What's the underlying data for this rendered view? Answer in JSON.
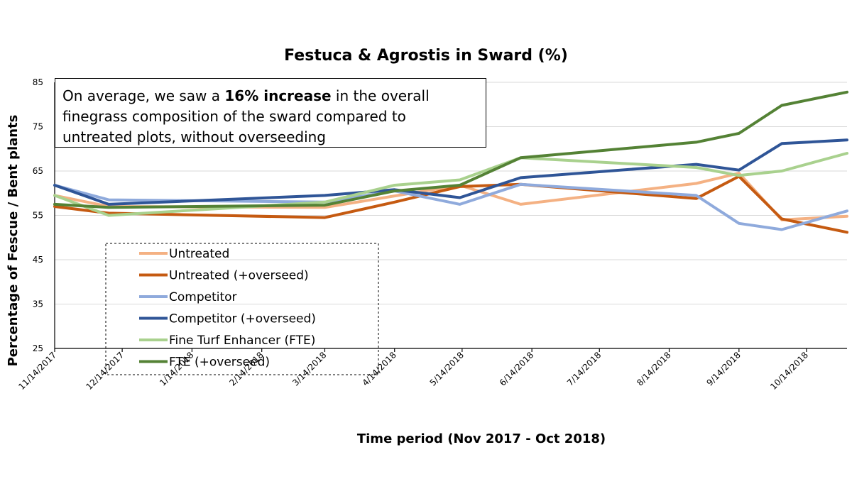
{
  "chart_data": {
    "type": "line",
    "title": "Festuca & Agrostis in Sward (%)",
    "xlabel": "Time period (Nov 2017 - Oct 2018)",
    "ylabel": "Percentage of  Fescue / Bent plants",
    "ylim": [
      25,
      85
    ],
    "yticks": [
      "25",
      "35",
      "45",
      "55",
      "65",
      "75",
      "85"
    ],
    "xlim_days": [
      0,
      352
    ],
    "xticks": [
      {
        "label": "11/14/2017",
        "day": 0
      },
      {
        "label": "12/14/2017",
        "day": 30
      },
      {
        "label": "1/14/2018",
        "day": 61
      },
      {
        "label": "2/14/2018",
        "day": 92
      },
      {
        "label": "3/14/2018",
        "day": 120
      },
      {
        "label": "4/14/2018",
        "day": 151
      },
      {
        "label": "5/14/2018",
        "day": 181
      },
      {
        "label": "6/14/2018",
        "day": 212
      },
      {
        "label": "7/14/2018",
        "day": 242
      },
      {
        "label": "8/14/2018",
        "day": 273
      },
      {
        "label": "9/14/2018",
        "day": 304
      },
      {
        "label": "10/14/2018",
        "day": 334
      }
    ],
    "series": [
      {
        "name": "Untreated",
        "color": "#f4b183",
        "days": [
          0,
          24,
          120,
          180,
          207,
          285,
          304,
          323,
          352
        ],
        "values": [
          59.5,
          57.0,
          56.8,
          61.8,
          57.5,
          62.2,
          64.5,
          54.0,
          54.8
        ]
      },
      {
        "name": "Untreated (+overseed)",
        "color": "#c55a11",
        "days": [
          0,
          24,
          120,
          151,
          180,
          207,
          285,
          304,
          323,
          352
        ],
        "values": [
          57.0,
          55.5,
          54.5,
          58.0,
          61.5,
          62.0,
          58.8,
          63.8,
          54.2,
          51.2
        ]
      },
      {
        "name": "Competitor",
        "color": "#8faadc",
        "days": [
          0,
          24,
          120,
          151,
          180,
          207,
          285,
          304,
          323,
          352
        ],
        "values": [
          61.8,
          58.5,
          58.0,
          60.5,
          57.5,
          62.0,
          59.5,
          53.2,
          51.8,
          56.0
        ]
      },
      {
        "name": "Competitor (+overseed)",
        "color": "#2f5597",
        "days": [
          0,
          24,
          120,
          151,
          180,
          207,
          285,
          304,
          323,
          352
        ],
        "values": [
          61.8,
          57.5,
          59.5,
          60.8,
          59.0,
          63.5,
          66.5,
          65.2,
          71.2,
          72.0
        ]
      },
      {
        "name": "Fine Turf Enhancer (FTE)",
        "color": "#a9d18e",
        "days": [
          0,
          24,
          120,
          151,
          180,
          207,
          285,
          304,
          323,
          352
        ],
        "values": [
          59.5,
          55.0,
          58.0,
          61.8,
          63.0,
          68.0,
          65.8,
          64.0,
          65.0,
          69.0
        ]
      },
      {
        "name": "FTE (+overseed)",
        "color": "#548235",
        "days": [
          0,
          24,
          120,
          151,
          180,
          207,
          285,
          304,
          323,
          352
        ],
        "values": [
          57.5,
          56.8,
          57.3,
          60.5,
          61.8,
          68.0,
          71.5,
          73.5,
          79.8,
          82.8
        ]
      }
    ]
  },
  "callout": {
    "prefix": "On average, we saw a ",
    "bold": "16% increase",
    "suffix": " in the overall finegrass composition of the sward compared to untreated plots, without overseeding"
  }
}
